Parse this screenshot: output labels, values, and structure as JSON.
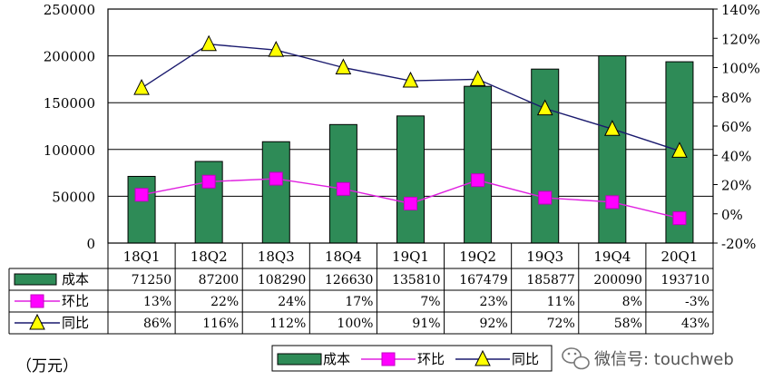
{
  "chart_data": {
    "type": "bar",
    "categories": [
      "18Q1",
      "18Q2",
      "18Q3",
      "18Q4",
      "19Q1",
      "19Q2",
      "19Q3",
      "19Q4",
      "20Q1"
    ],
    "series": [
      {
        "name": "成本",
        "kind": "bar",
        "axis": "left",
        "color": "#2e8b57",
        "values": [
          71250,
          87200,
          108290,
          126630,
          135810,
          167479,
          185877,
          200090,
          193710
        ],
        "labels": [
          "71250",
          "87200",
          "108290",
          "126630",
          "135810",
          "167479",
          "185877",
          "200090",
          "193710"
        ]
      },
      {
        "name": "环比",
        "kind": "line",
        "axis": "right",
        "color": "#e020e0",
        "marker": "square",
        "values": [
          13,
          22,
          24,
          17,
          7,
          23,
          11,
          8,
          -3
        ],
        "labels": [
          "13%",
          "22%",
          "24%",
          "17%",
          "7%",
          "23%",
          "11%",
          "8%",
          "-3%"
        ]
      },
      {
        "name": "同比",
        "kind": "line",
        "axis": "right",
        "color": "#1a1a6e",
        "marker": "triangle",
        "values": [
          86,
          116,
          112,
          100,
          91,
          92,
          72,
          58,
          43
        ],
        "labels": [
          "86%",
          "116%",
          "112%",
          "100%",
          "91%",
          "92%",
          "72%",
          "58%",
          "43%"
        ]
      }
    ],
    "y_left": {
      "range": [
        0,
        250000
      ],
      "ticks": [
        "250000",
        "200000",
        "150000",
        "100000",
        "50000",
        "0"
      ]
    },
    "y_right": {
      "range": [
        -20,
        140
      ],
      "unit": "%",
      "ticks": [
        "140%",
        "120%",
        "100%",
        "80%",
        "60%",
        "40%",
        "20%",
        "0%",
        "-20%"
      ]
    },
    "unit_label": "（万元）",
    "grid": "horizontal",
    "legend_position": "bottom"
  },
  "watermark": "微信号: touchweb"
}
